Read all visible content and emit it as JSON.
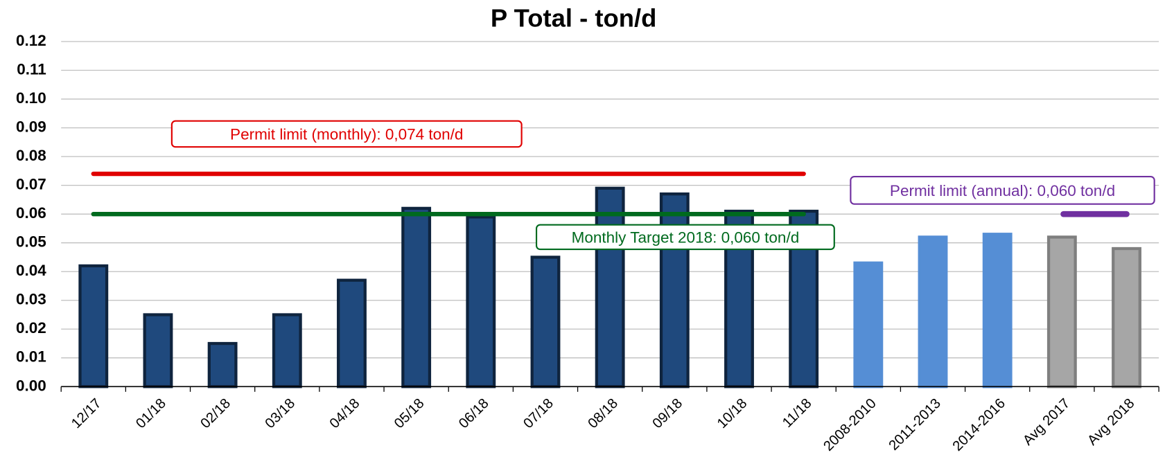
{
  "chart_data": {
    "type": "bar",
    "title": "P Total - ton/d",
    "categories": [
      "12/17",
      "01/18",
      "02/18",
      "03/18",
      "04/18",
      "05/18",
      "06/18",
      "07/18",
      "08/18",
      "09/18",
      "10/18",
      "11/18",
      "2008-2010",
      "2011-2013",
      "2014-2016",
      "Avg 2017",
      "Avg 2018"
    ],
    "values": [
      0.042,
      0.025,
      0.015,
      0.025,
      0.037,
      0.062,
      0.059,
      0.045,
      0.069,
      0.067,
      0.061,
      0.061,
      0.043,
      0.052,
      0.053,
      0.052,
      0.048
    ],
    "colors": [
      "#1f497d",
      "#1f497d",
      "#1f497d",
      "#1f497d",
      "#1f497d",
      "#1f497d",
      "#1f497d",
      "#1f497d",
      "#1f497d",
      "#1f497d",
      "#1f497d",
      "#1f497d",
      "#558ed5",
      "#558ed5",
      "#558ed5",
      "#a6a6a6",
      "#a6a6a6"
    ],
    "edge_colors": [
      "#0f243e",
      "#0f243e",
      "#0f243e",
      "#0f243e",
      "#0f243e",
      "#0f243e",
      "#0f243e",
      "#0f243e",
      "#0f243e",
      "#0f243e",
      "#0f243e",
      "#0f243e",
      "#558ed5",
      "#558ed5",
      "#558ed5",
      "#7f7f7f",
      "#7f7f7f"
    ],
    "ylim": [
      0,
      0.12
    ],
    "yticks": [
      {
        "value": 0,
        "label": "0.00"
      },
      {
        "value": 0.01,
        "label": "0.01"
      },
      {
        "value": 0.02,
        "label": "0.02"
      },
      {
        "value": 0.03,
        "label": "0.03"
      },
      {
        "value": 0.04,
        "label": "0.04"
      },
      {
        "value": 0.05,
        "label": "0.05"
      },
      {
        "value": 0.06,
        "label": "0.06"
      },
      {
        "value": 0.07,
        "label": "0.07"
      },
      {
        "value": 0.08,
        "label": "0.08"
      },
      {
        "value": 0.09,
        "label": "0.09"
      },
      {
        "value": 0.1,
        "label": "0.10"
      },
      {
        "value": 0.11,
        "label": "0.11"
      },
      {
        "value": 0.12,
        "label": "0.12"
      }
    ],
    "grid": true,
    "reference_lines": [
      {
        "label": "Permit limit (monthly):  0,074 ton/d",
        "value": 0.074,
        "color": "#e00000",
        "start": "12/17",
        "end": "11/18"
      },
      {
        "label": "Monthly Target 2018: 0,060 ton/d",
        "value": 0.06,
        "color": "#006a1e",
        "start": "12/17",
        "end": "11/18"
      },
      {
        "label": "Permit limit (annual):  0,060 ton/d",
        "value": 0.06,
        "color": "#7030a0",
        "start": "Avg 2017",
        "end": "Avg 2018"
      }
    ]
  }
}
